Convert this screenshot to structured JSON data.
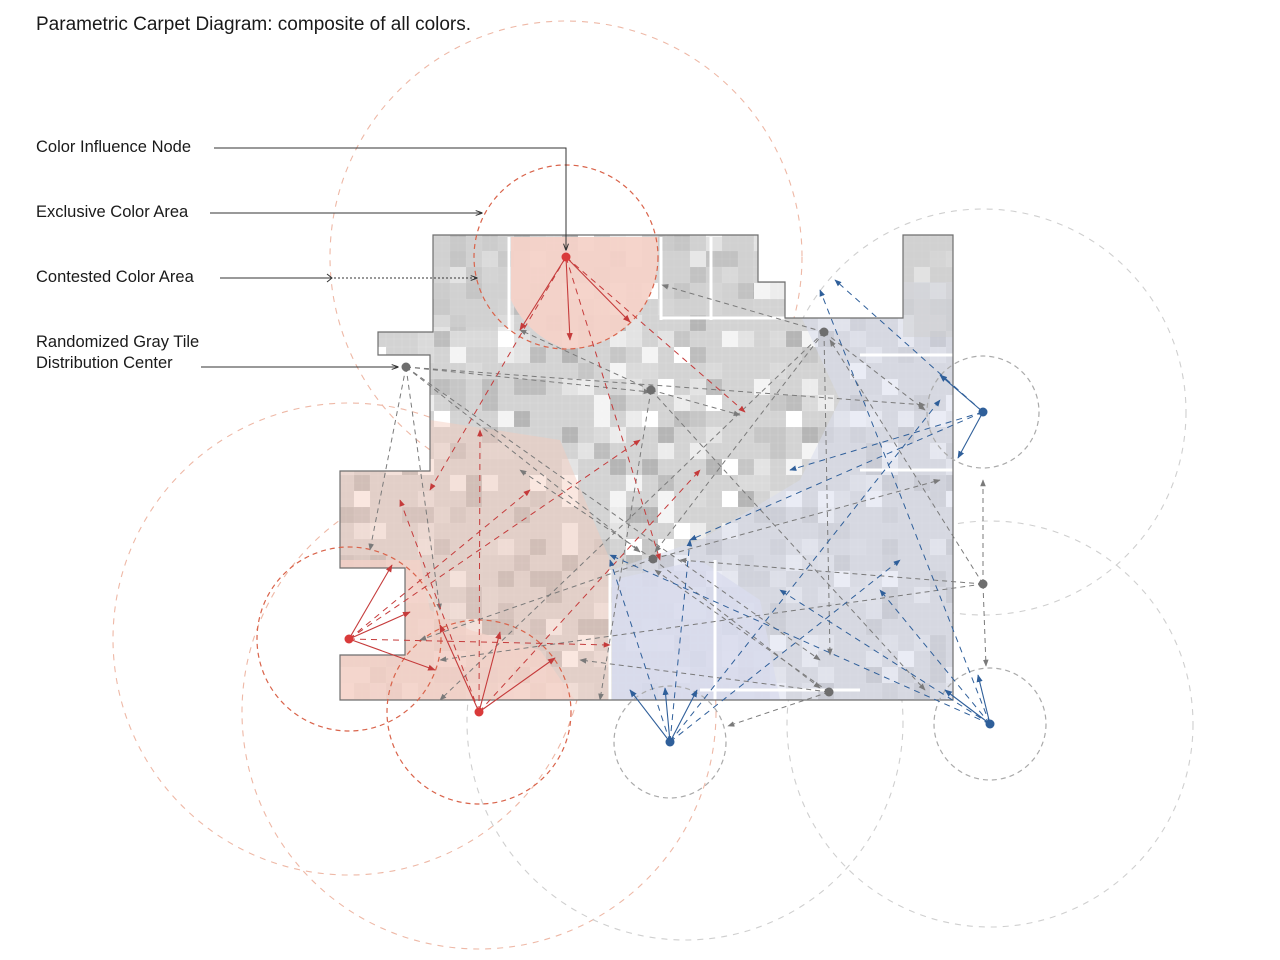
{
  "title": "Parametric Carpet Diagram: composite of all colors.",
  "legend": {
    "color_influence_node": "Color Influence Node",
    "exclusive_color_area": "Exclusive Color Area",
    "contested_color_area": "Contested Color Area",
    "distribution_center_line1": "Randomized Gray Tile",
    "distribution_center_line2": "Distribution Center"
  },
  "colors": {
    "red_node": "#d93a3a",
    "red_line": "#c53b3b",
    "red_area": "#f4d2c8",
    "red_circle": "#e9a28a",
    "blue_node": "#2f5f9a",
    "blue_line": "#2f5f9a",
    "blue_area": "#d9dced",
    "gray_node": "#707070",
    "gray_line": "#8a8a8a",
    "gray_tile": "#d2d2d2",
    "gray_circle": "#c3c3c3",
    "outline": "#6e6e6e",
    "leader": "#333333"
  }
}
